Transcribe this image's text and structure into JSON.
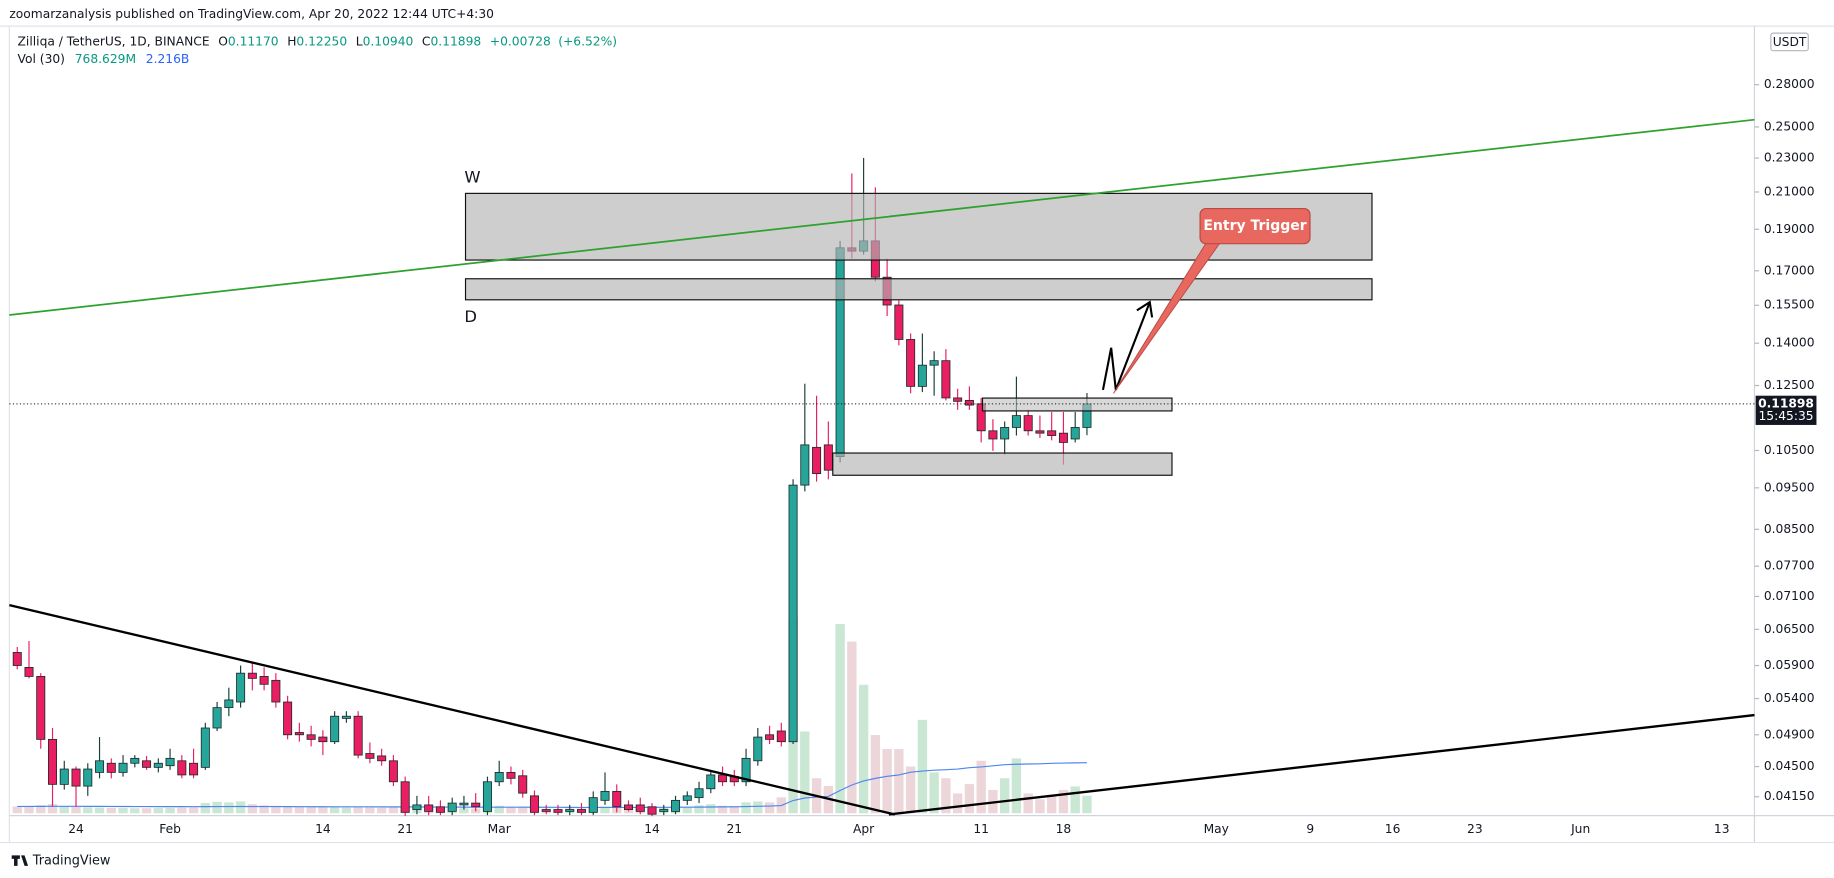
{
  "published": "zoomarzanalysis published on TradingView.com, Apr 20, 2022 12:44 UTC+4:30",
  "footer": "TradingView",
  "annotations": {
    "w": "W",
    "d": "D",
    "entry": "Entry Trigger"
  },
  "chart_data": {
    "type": "candlestick",
    "legend": {
      "symbol": "Zilliqa / TetherUS, 1D, BINANCE",
      "open": {
        "key": "O",
        "value": 0.1117,
        "label": "0.11170"
      },
      "high": {
        "key": "H",
        "value": 0.1225,
        "label": "0.12250"
      },
      "low": {
        "key": "L",
        "value": 0.1094,
        "label": "0.10940"
      },
      "close": {
        "key": "C",
        "value": 0.11898,
        "label": "0.11898"
      },
      "change": {
        "value": 0.00728,
        "label": "+0.00728"
      },
      "change_pct": {
        "value": 6.52,
        "label": "(+6.52%)"
      },
      "vol_name": "Vol (30)",
      "vol": {
        "value": 768.629,
        "label": "768.629M"
      },
      "vol_ma": {
        "value": 2216,
        "label": "2.216B"
      }
    },
    "currency": "USDT",
    "countdown": "15:45:35",
    "log_scale": true,
    "grid": false,
    "up_color": "#26a69a",
    "down_color": "#e91e63",
    "vol_up_color": "#c9e7d2",
    "vol_down_color": "#ecd6d9",
    "ma_color": "#4f86f0",
    "ylim": [
      0.0397,
      0.3276
    ],
    "yticks": [
      {
        "value": 0.28,
        "label": "0.28000"
      },
      {
        "value": 0.25,
        "label": "0.25000"
      },
      {
        "value": 0.23,
        "label": "0.23000"
      },
      {
        "value": 0.21,
        "label": "0.21000"
      },
      {
        "value": 0.19,
        "label": "0.19000"
      },
      {
        "value": 0.17,
        "label": "0.17000"
      },
      {
        "value": 0.155,
        "label": "0.15500"
      },
      {
        "value": 0.14,
        "label": "0.14000"
      },
      {
        "value": 0.125,
        "label": "0.12500"
      },
      {
        "value": 0.105,
        "label": "0.10500"
      },
      {
        "value": 0.095,
        "label": "0.09500"
      },
      {
        "value": 0.085,
        "label": "0.08500"
      },
      {
        "value": 0.077,
        "label": "0.07700"
      },
      {
        "value": 0.071,
        "label": "0.07100"
      },
      {
        "value": 0.065,
        "label": "0.06500"
      },
      {
        "value": 0.059,
        "label": "0.05900"
      },
      {
        "value": 0.054,
        "label": "0.05400"
      },
      {
        "value": 0.049,
        "label": "0.04900"
      },
      {
        "value": 0.045,
        "label": "0.04500"
      },
      {
        "value": 0.0415,
        "label": "0.04150"
      }
    ],
    "vol_lim": [
      0,
      34500
    ],
    "categories": [
      null,
      null,
      null,
      null,
      null,
      "24",
      null,
      null,
      null,
      null,
      null,
      null,
      null,
      "Feb",
      null,
      null,
      null,
      null,
      null,
      null,
      null,
      null,
      null,
      null,
      null,
      null,
      "14",
      null,
      null,
      null,
      null,
      null,
      null,
      "21",
      null,
      null,
      null,
      null,
      null,
      null,
      null,
      "Mar",
      null,
      null,
      null,
      null,
      null,
      null,
      null,
      null,
      null,
      null,
      null,
      null,
      "14",
      null,
      null,
      null,
      null,
      null,
      null,
      "21",
      null,
      null,
      null,
      null,
      null,
      null,
      null,
      null,
      null,
      null,
      "Apr",
      null,
      null,
      null,
      null,
      null,
      null,
      null,
      null,
      null,
      "11",
      null,
      null,
      null,
      null,
      null,
      null,
      "18",
      null,
      null,
      null,
      null,
      null,
      null,
      null,
      null,
      null,
      null,
      null,
      null,
      "May",
      null,
      null,
      null,
      null,
      null,
      null,
      null,
      "9",
      null,
      null,
      null,
      null,
      null,
      null,
      "16",
      null,
      null,
      null,
      null,
      null,
      null,
      "23",
      null,
      null,
      null,
      null,
      null,
      null,
      null,
      null,
      "Jun",
      null,
      null,
      null,
      null,
      null,
      null,
      null,
      null,
      null,
      null,
      null,
      "13",
      null
    ],
    "open": [
      0.0611,
      0.0587,
      0.0573,
      0.0484,
      0.0429,
      0.0447,
      0.0427,
      0.0443,
      0.0454,
      0.0443,
      0.0454,
      0.0457,
      0.0449,
      0.0451,
      0.0457,
      0.0454,
      0.0449,
      0.0499,
      0.0527,
      0.0535,
      0.0578,
      0.0573,
      0.0567,
      0.0535,
      0.0493,
      0.049,
      0.0487,
      0.0481,
      0.0512,
      0.0515,
      0.0466,
      0.0463,
      0.0457,
      0.0432,
      0.0401,
      0.0406,
      0.0404,
      0.0399,
      0.0406,
      0.0408,
      0.0399,
      0.0432,
      0.0443,
      0.0439,
      0.0416,
      0.0401,
      0.0401,
      0.0399,
      0.0401,
      0.0398,
      0.0411,
      0.0421,
      0.0406,
      0.0406,
      0.0404,
      0.0399,
      0.0399,
      0.0411,
      0.0414,
      0.0424,
      0.044,
      0.0438,
      0.0432,
      0.0457,
      0.049,
      0.0495,
      0.0481,
      0.0957,
      0.1059,
      0.1066,
      0.1033,
      0.1808,
      0.1792,
      0.1842,
      0.1671,
      0.1551,
      0.1414,
      0.1247,
      0.132,
      0.1336,
      0.1209,
      0.1201,
      0.119,
      0.1107,
      0.1083,
      0.1117,
      0.1153,
      0.1107,
      0.1107,
      0.11,
      0.1083,
      0.1117,
      null,
      null,
      null,
      null,
      null,
      null,
      null,
      null,
      null,
      null,
      null,
      null,
      null,
      null,
      null,
      null,
      null,
      null,
      null,
      null,
      null,
      null,
      null,
      null,
      null,
      null,
      null,
      null,
      null,
      null,
      null,
      null,
      null,
      null,
      null,
      null,
      null,
      null,
      null,
      null,
      null,
      null,
      null,
      null,
      null,
      null,
      null,
      null,
      null,
      null,
      null,
      null,
      null,
      null,
      null
    ],
    "high": [
      0.062,
      0.063,
      0.0578,
      0.0499,
      0.0457,
      0.045,
      0.0454,
      0.0487,
      0.046,
      0.0464,
      0.0464,
      0.0463,
      0.046,
      0.0472,
      0.0464,
      0.0472,
      0.0506,
      0.0535,
      0.0556,
      0.059,
      0.0594,
      0.0587,
      0.0578,
      0.0544,
      0.0506,
      0.0502,
      0.0496,
      0.0522,
      0.0522,
      0.0522,
      0.048,
      0.0472,
      0.0464,
      0.0438,
      0.0416,
      0.0416,
      0.0411,
      0.0414,
      0.0416,
      0.0419,
      0.0438,
      0.0457,
      0.045,
      0.0446,
      0.0422,
      0.0406,
      0.0406,
      0.0406,
      0.0408,
      0.0421,
      0.0443,
      0.0429,
      0.0411,
      0.0414,
      0.0408,
      0.0406,
      0.0416,
      0.0421,
      0.0432,
      0.0446,
      0.045,
      0.0446,
      0.0472,
      0.0499,
      0.0502,
      0.0506,
      0.0972,
      0.1256,
      0.1216,
      0.1135,
      0.1842,
      0.2207,
      0.2301,
      0.2126,
      0.1756,
      0.157,
      0.1437,
      0.1437,
      0.137,
      0.1378,
      0.1239,
      0.1247,
      0.1209,
      0.1142,
      0.1135,
      0.128,
      0.1171,
      0.1153,
      0.1164,
      0.1164,
      0.1164,
      0.1225,
      null,
      null,
      null,
      null,
      null,
      null,
      null,
      null,
      null,
      null,
      null,
      null,
      null,
      null,
      null,
      null,
      null,
      null,
      null,
      null,
      null,
      null,
      null,
      null,
      null,
      null,
      null,
      null,
      null,
      null,
      null,
      null,
      null,
      null,
      null,
      null,
      null,
      null,
      null,
      null,
      null,
      null,
      null,
      null,
      null,
      null,
      null,
      null,
      null,
      null,
      null,
      null,
      null,
      null,
      null
    ],
    "low": [
      0.0584,
      0.057,
      0.0472,
      0.0404,
      0.0423,
      0.0404,
      0.0416,
      0.0436,
      0.0436,
      0.0438,
      0.0449,
      0.0446,
      0.0443,
      0.0446,
      0.0436,
      0.0436,
      0.0446,
      0.0495,
      0.0515,
      0.0527,
      0.0552,
      0.0552,
      0.0527,
      0.0484,
      0.0481,
      0.0475,
      0.0464,
      0.0478,
      0.0506,
      0.046,
      0.0454,
      0.0451,
      0.0427,
      0.0394,
      0.0396,
      0.0395,
      0.0395,
      0.0395,
      0.0401,
      0.0399,
      0.0395,
      0.0427,
      0.0429,
      0.0414,
      0.0395,
      0.0396,
      0.0395,
      0.0395,
      0.0395,
      0.0395,
      0.0406,
      0.0398,
      0.0399,
      0.0396,
      0.0394,
      0.0395,
      0.0396,
      0.0406,
      0.0408,
      0.0419,
      0.0427,
      0.0427,
      0.0427,
      0.0451,
      0.0478,
      0.0475,
      0.0478,
      0.0941,
      0.0966,
      0.0972,
      0.1017,
      0.1756,
      0.1776,
      0.1653,
      0.1506,
      0.1392,
      0.1224,
      0.1228,
      0.1216,
      0.1201,
      0.1171,
      0.1171,
      0.1073,
      0.1049,
      0.1039,
      0.1093,
      0.1093,
      0.1086,
      0.1079,
      0.1011,
      0.1073,
      0.1094,
      null,
      null,
      null,
      null,
      null,
      null,
      null,
      null,
      null,
      null,
      null,
      null,
      null,
      null,
      null,
      null,
      null,
      null,
      null,
      null,
      null,
      null,
      null,
      null,
      null,
      null,
      null,
      null,
      null,
      null,
      null,
      null,
      null,
      null,
      null,
      null,
      null,
      null,
      null,
      null,
      null,
      null,
      null,
      null,
      null,
      null,
      null,
      null,
      null,
      null,
      null,
      null,
      null,
      null,
      null
    ],
    "close": [
      0.059,
      0.0573,
      0.0484,
      0.0429,
      0.0447,
      0.0427,
      0.0447,
      0.0457,
      0.0443,
      0.0454,
      0.046,
      0.0449,
      0.0454,
      0.046,
      0.044,
      0.044,
      0.0499,
      0.0527,
      0.0538,
      0.0578,
      0.057,
      0.0561,
      0.0535,
      0.049,
      0.049,
      0.0484,
      0.0481,
      0.0515,
      0.0515,
      0.0464,
      0.046,
      0.0457,
      0.0432,
      0.0398,
      0.0406,
      0.0399,
      0.0398,
      0.0408,
      0.0408,
      0.0404,
      0.0432,
      0.0443,
      0.0436,
      0.0419,
      0.0398,
      0.0399,
      0.0398,
      0.0401,
      0.0398,
      0.0414,
      0.0421,
      0.0404,
      0.0401,
      0.0399,
      0.0396,
      0.0401,
      0.0411,
      0.0416,
      0.0424,
      0.044,
      0.0432,
      0.0432,
      0.046,
      0.0487,
      0.0484,
      0.0481,
      0.0957,
      0.1066,
      0.0987,
      0.0996,
      0.1808,
      0.1792,
      0.1842,
      0.1671,
      0.1551,
      0.1414,
      0.1247,
      0.132,
      0.1336,
      0.1209,
      0.1198,
      0.1186,
      0.1107,
      0.1083,
      0.1117,
      0.1153,
      0.1107,
      0.11,
      0.1093,
      0.1073,
      0.1117,
      0.11898,
      null,
      null,
      null,
      null,
      null,
      null,
      null,
      null,
      null,
      null,
      null,
      null,
      null,
      null,
      null,
      null,
      null,
      null,
      null,
      null,
      null,
      null,
      null,
      null,
      null,
      null,
      null,
      null,
      null,
      null,
      null,
      null,
      null,
      null,
      null,
      null,
      null,
      null,
      null,
      null,
      null,
      null,
      null,
      null,
      null,
      null,
      null,
      null,
      null,
      null,
      null,
      null,
      null,
      null,
      null
    ],
    "volume": [
      300,
      280,
      350,
      400,
      300,
      280,
      260,
      250,
      240,
      230,
      220,
      220,
      230,
      240,
      250,
      260,
      450,
      500,
      480,
      520,
      400,
      350,
      330,
      320,
      280,
      260,
      280,
      300,
      250,
      300,
      260,
      240,
      280,
      350,
      250,
      240,
      230,
      240,
      220,
      210,
      350,
      330,
      280,
      300,
      320,
      200,
      200,
      210,
      220,
      260,
      300,
      280,
      220,
      200,
      210,
      250,
      260,
      280,
      350,
      400,
      330,
      320,
      480,
      520,
      480,
      700,
      8550,
      3584,
      1536,
      1200,
      8294,
      7526,
      5632,
      3430,
      2816,
      2816,
      2048,
      4096,
      1792,
      1536,
      870,
      1280,
      2304,
      1024,
      1536,
      2406,
      870,
      614,
      768,
      1024,
      1178,
      768.629,
      null,
      null,
      null,
      null,
      null,
      null,
      null,
      null,
      null,
      null,
      null,
      null,
      null,
      null,
      null,
      null,
      null,
      null,
      null,
      null,
      null,
      null,
      null,
      null,
      null,
      null,
      null,
      null,
      null,
      null,
      null,
      null,
      null,
      null,
      null,
      null,
      null,
      null,
      null,
      null,
      null,
      null,
      null,
      null,
      null,
      null,
      null,
      null,
      null,
      null,
      null,
      null,
      null,
      null,
      null
    ],
    "volume_ma": [
      300,
      300,
      302,
      305,
      305,
      304,
      303,
      302,
      300,
      298,
      296,
      294,
      292,
      292,
      291,
      290,
      292,
      294,
      295,
      297,
      296,
      295,
      293,
      291,
      289,
      287,
      286,
      285,
      284,
      283,
      282,
      281,
      281,
      280,
      278,
      276,
      274,
      272,
      270,
      268,
      268,
      267,
      266,
      266,
      265,
      264,
      262,
      260,
      258,
      257,
      257,
      258,
      258,
      259,
      260,
      262,
      264,
      266,
      270,
      275,
      280,
      285,
      295,
      305,
      318,
      338,
      560,
      670,
      710,
      740,
      1000,
      1240,
      1420,
      1530,
      1620,
      1680,
      1800,
      1850,
      1890,
      1910,
      1940,
      2000,
      2030,
      2080,
      2130,
      2150,
      2160,
      2170,
      2190,
      2200,
      2210,
      2216,
      null,
      null,
      null,
      null,
      null,
      null,
      null,
      null,
      null,
      null,
      null,
      null,
      null,
      null,
      null,
      null,
      null,
      null,
      null,
      null,
      null,
      null,
      null,
      null,
      null,
      null,
      null,
      null,
      null,
      null,
      null,
      null,
      null,
      null,
      null,
      null,
      null,
      null,
      null,
      null,
      null,
      null,
      null,
      null,
      null,
      null,
      null,
      null,
      null,
      null,
      null,
      null,
      null,
      null,
      null
    ]
  }
}
